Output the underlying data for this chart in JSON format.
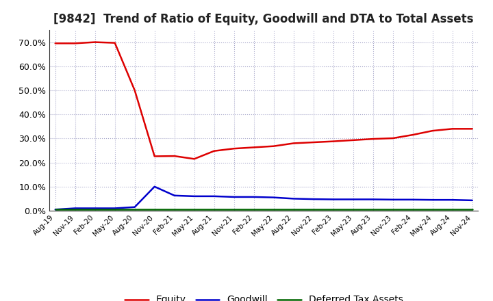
{
  "title": "[9842]  Trend of Ratio of Equity, Goodwill and DTA to Total Assets",
  "title_fontsize": 12,
  "background_color": "#ffffff",
  "grid_color": "#aaaacc",
  "ylim": [
    0.0,
    0.75
  ],
  "yticks": [
    0.0,
    0.1,
    0.2,
    0.3,
    0.4,
    0.5,
    0.6,
    0.7
  ],
  "xtick_labels": [
    "Aug-19",
    "Nov-19",
    "Feb-20",
    "May-20",
    "Aug-20",
    "Nov-20",
    "Feb-21",
    "May-21",
    "Aug-21",
    "Nov-21",
    "Feb-22",
    "May-22",
    "Aug-22",
    "Nov-22",
    "Feb-23",
    "May-23",
    "Aug-23",
    "Nov-23",
    "Feb-24",
    "May-24",
    "Aug-24",
    "Nov-24"
  ],
  "equity": {
    "values": [
      0.695,
      0.695,
      0.7,
      0.697,
      0.5,
      0.226,
      0.227,
      0.215,
      0.248,
      0.258,
      0.263,
      0.268,
      0.28,
      0.284,
      0.288,
      0.293,
      0.298,
      0.301,
      0.315,
      0.332,
      0.34,
      0.34
    ],
    "color": "#dd0000",
    "linewidth": 1.8,
    "label": "Equity"
  },
  "goodwill": {
    "values": [
      0.005,
      0.01,
      0.01,
      0.01,
      0.015,
      0.1,
      0.063,
      0.06,
      0.06,
      0.057,
      0.057,
      0.055,
      0.05,
      0.048,
      0.047,
      0.047,
      0.047,
      0.046,
      0.046,
      0.045,
      0.045,
      0.043
    ],
    "color": "#0000cc",
    "linewidth": 1.8,
    "label": "Goodwill"
  },
  "dta": {
    "values": [
      0.005,
      0.005,
      0.005,
      0.005,
      0.005,
      0.005,
      0.005,
      0.005,
      0.005,
      0.005,
      0.005,
      0.005,
      0.005,
      0.005,
      0.005,
      0.005,
      0.005,
      0.005,
      0.005,
      0.005,
      0.005,
      0.005
    ],
    "color": "#006600",
    "linewidth": 1.8,
    "label": "Deferred Tax Assets"
  }
}
